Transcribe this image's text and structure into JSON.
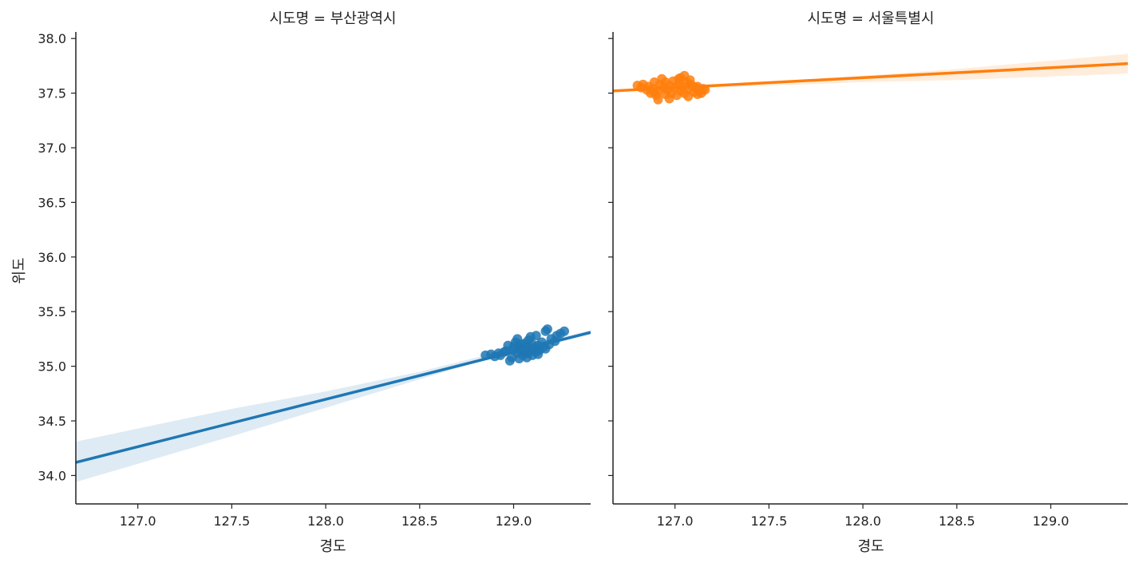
{
  "chart_data": {
    "type": "scatter",
    "ylabel": "위도",
    "xlabel": "경도",
    "xlim": [
      126.67,
      129.41
    ],
    "ylim": [
      33.74,
      38.06
    ],
    "xticks": [
      "127.0",
      "127.5",
      "128.0",
      "128.5",
      "129.0"
    ],
    "yticks": [
      "34.0",
      "34.5",
      "35.0",
      "35.5",
      "36.0",
      "36.5",
      "37.0",
      "37.5",
      "38.0"
    ],
    "grid": false,
    "panels": [
      {
        "title": "시도명 = 부산광역시",
        "color": "#1f77b4",
        "regression": {
          "x": [
            126.67,
            129.41
          ],
          "y": [
            34.12,
            35.31
          ]
        },
        "ci": {
          "x": [
            126.67,
            127.5,
            128.0,
            128.5,
            128.85,
            129.41
          ],
          "lower": [
            33.94,
            34.36,
            34.62,
            34.88,
            35.06,
            35.29
          ],
          "upper": [
            34.31,
            34.61,
            34.77,
            34.95,
            35.1,
            35.33
          ]
        },
        "points": [
          [
            128.85,
            35.1
          ],
          [
            128.88,
            35.11
          ],
          [
            128.9,
            35.09
          ],
          [
            128.92,
            35.12
          ],
          [
            128.93,
            35.1
          ],
          [
            128.95,
            35.13
          ],
          [
            128.97,
            35.19
          ],
          [
            128.98,
            35.05
          ],
          [
            128.99,
            35.08
          ],
          [
            129.0,
            35.15
          ],
          [
            129.01,
            35.22
          ],
          [
            129.02,
            35.12
          ],
          [
            129.02,
            35.25
          ],
          [
            129.03,
            35.18
          ],
          [
            129.03,
            35.07
          ],
          [
            129.04,
            35.14
          ],
          [
            129.04,
            35.2
          ],
          [
            129.05,
            35.1
          ],
          [
            129.05,
            35.16
          ],
          [
            129.06,
            35.21
          ],
          [
            129.06,
            35.13
          ],
          [
            129.07,
            35.08
          ],
          [
            129.07,
            35.18
          ],
          [
            129.08,
            35.24
          ],
          [
            129.08,
            35.12
          ],
          [
            129.09,
            35.15
          ],
          [
            129.09,
            35.27
          ],
          [
            129.1,
            35.2
          ],
          [
            129.1,
            35.1
          ],
          [
            129.11,
            35.17
          ],
          [
            129.12,
            35.13
          ],
          [
            129.12,
            35.28
          ],
          [
            129.13,
            35.19
          ],
          [
            129.14,
            35.15
          ],
          [
            129.15,
            35.22
          ],
          [
            129.16,
            35.18
          ],
          [
            129.17,
            35.16
          ],
          [
            129.17,
            35.32
          ],
          [
            129.18,
            35.34
          ],
          [
            129.19,
            35.2
          ],
          [
            129.2,
            35.25
          ],
          [
            129.22,
            35.23
          ],
          [
            129.23,
            35.28
          ],
          [
            129.25,
            35.3
          ],
          [
            129.27,
            35.32
          ],
          [
            129.13,
            35.11
          ],
          [
            129.0,
            35.18
          ],
          [
            128.96,
            35.14
          ]
        ]
      },
      {
        "title": "시도명 = 서울특별시",
        "color": "#ff7f0e",
        "regression": {
          "x": [
            126.67,
            129.41
          ],
          "y": [
            37.52,
            37.77
          ]
        },
        "ci": {
          "x": [
            126.67,
            126.85,
            127.2,
            128.0,
            128.5,
            129.41
          ],
          "lower": [
            37.51,
            37.53,
            37.55,
            37.6,
            37.62,
            37.68
          ],
          "upper": [
            37.53,
            37.55,
            37.57,
            37.66,
            37.72,
            37.86
          ]
        },
        "points": [
          [
            126.8,
            37.57
          ],
          [
            126.82,
            37.55
          ],
          [
            126.83,
            37.58
          ],
          [
            126.85,
            37.53
          ],
          [
            126.86,
            37.56
          ],
          [
            126.87,
            37.5
          ],
          [
            126.88,
            37.54
          ],
          [
            126.89,
            37.6
          ],
          [
            126.9,
            37.48
          ],
          [
            126.91,
            37.52
          ],
          [
            126.91,
            37.44
          ],
          [
            126.92,
            37.58
          ],
          [
            126.93,
            37.63
          ],
          [
            126.94,
            37.55
          ],
          [
            126.95,
            37.49
          ],
          [
            126.95,
            37.6
          ],
          [
            126.96,
            37.53
          ],
          [
            126.97,
            37.57
          ],
          [
            126.98,
            37.5
          ],
          [
            126.99,
            37.61
          ],
          [
            127.0,
            37.55
          ],
          [
            127.01,
            37.48
          ],
          [
            127.02,
            37.59
          ],
          [
            127.03,
            37.52
          ],
          [
            127.03,
            37.64
          ],
          [
            127.04,
            37.56
          ],
          [
            127.05,
            37.5
          ],
          [
            127.05,
            37.66
          ],
          [
            127.06,
            37.6
          ],
          [
            127.07,
            37.54
          ],
          [
            127.07,
            37.47
          ],
          [
            127.08,
            37.62
          ],
          [
            127.09,
            37.57
          ],
          [
            127.1,
            37.51
          ],
          [
            127.11,
            37.55
          ],
          [
            127.12,
            37.49
          ],
          [
            127.13,
            37.52
          ],
          [
            127.14,
            37.5
          ],
          [
            127.15,
            37.54
          ],
          [
            127.16,
            37.53
          ],
          [
            126.97,
            37.45
          ],
          [
            127.02,
            37.63
          ],
          [
            126.89,
            37.51
          ],
          [
            127.08,
            37.58
          ],
          [
            127.12,
            37.56
          ]
        ]
      }
    ]
  }
}
